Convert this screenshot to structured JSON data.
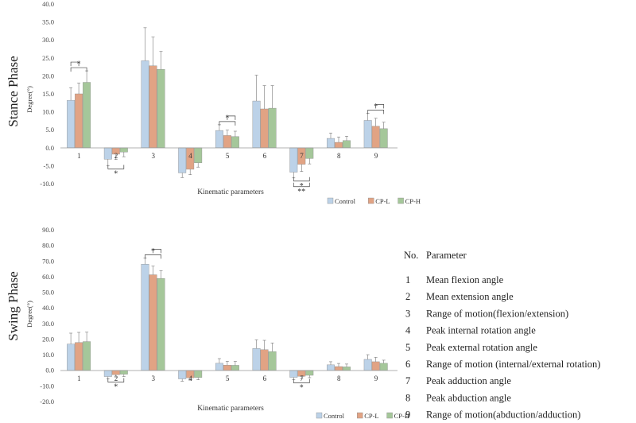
{
  "chart_data": [
    {
      "type": "bar",
      "title": "",
      "phase_label": "Stance Phase",
      "xlabel": "Kinematic parameters",
      "ylabel": "Degree(°)",
      "ylim": [
        -10,
        40
      ],
      "yticks": [
        "-10.0",
        "-5.0",
        "0.0",
        "5.0",
        "10.0",
        "15.0",
        "20.0",
        "25.0",
        "30.0",
        "35.0",
        "40.0"
      ],
      "categories": [
        "1",
        "2",
        "3",
        "4",
        "5",
        "6",
        "7",
        "8",
        "9"
      ],
      "series": [
        {
          "name": "Control",
          "color": "#bcd2e8",
          "values": [
            13.2,
            -3.2,
            24.2,
            -7.0,
            4.8,
            13.0,
            -6.8,
            2.6,
            7.6
          ],
          "errors": [
            3.5,
            1.8,
            9.2,
            1.3,
            1.6,
            7.2,
            1.6,
            1.5,
            2.0
          ]
        },
        {
          "name": "CP-L",
          "color": "#e1a384",
          "values": [
            15.0,
            -1.8,
            22.8,
            -6.0,
            3.4,
            10.8,
            -4.6,
            1.5,
            6.0
          ],
          "errors": [
            3.0,
            1.5,
            8.0,
            1.5,
            1.5,
            6.5,
            2.0,
            1.5,
            2.2
          ]
        },
        {
          "name": "CP-H",
          "color": "#a5c79a",
          "values": [
            18.2,
            -1.2,
            21.8,
            -4.2,
            3.1,
            11.0,
            -3.0,
            2.0,
            5.3
          ],
          "errors": [
            3.2,
            1.3,
            5.0,
            1.2,
            1.5,
            6.3,
            1.5,
            1.2,
            1.8
          ]
        }
      ],
      "significance": [
        "*",
        "*",
        "*",
        "*",
        "**",
        "*"
      ]
    },
    {
      "type": "bar",
      "title": "",
      "phase_label": "Swing Phase",
      "xlabel": "Kinematic parameters",
      "ylabel": "Degree(°)",
      "ylim": [
        -20,
        90
      ],
      "yticks": [
        "-20.0",
        "-10.0",
        "0.0",
        "10.0",
        "20.0",
        "30.0",
        "40.0",
        "50.0",
        "60.0",
        "70.0",
        "80.0",
        "90.0"
      ],
      "categories": [
        "1",
        "2",
        "3",
        "4",
        "5",
        "6",
        "7",
        "8",
        "9"
      ],
      "series": [
        {
          "name": "Control",
          "color": "#bcd2e8",
          "values": [
            16.8,
            -4.0,
            68.0,
            -5.5,
            4.5,
            14.0,
            -4.5,
            3.5,
            7.0
          ],
          "errors": [
            7.0,
            1.5,
            4.0,
            1.5,
            3.0,
            5.5,
            1.5,
            2.0,
            3.0
          ]
        },
        {
          "name": "CP-L",
          "color": "#e1a384",
          "values": [
            17.8,
            -2.8,
            61.2,
            -4.8,
            3.3,
            13.2,
            -3.8,
            2.4,
            5.5
          ],
          "errors": [
            6.5,
            1.5,
            5.5,
            1.5,
            2.5,
            6.0,
            1.5,
            2.0,
            2.8
          ]
        },
        {
          "name": "CP-H",
          "color": "#a5c79a",
          "values": [
            18.4,
            -2.5,
            58.8,
            -4.6,
            3.2,
            12.0,
            -3.2,
            2.2,
            4.5
          ],
          "errors": [
            6.0,
            1.5,
            5.0,
            1.5,
            2.5,
            5.5,
            1.5,
            1.8,
            2.0
          ]
        }
      ],
      "significance": [
        "*",
        "*",
        "*"
      ]
    }
  ],
  "parameter_table": {
    "header_no": "No.",
    "header_param": "Parameter",
    "rows": [
      {
        "no": "1",
        "text": "Mean flexion angle"
      },
      {
        "no": "2",
        "text": "Mean extension angle"
      },
      {
        "no": "3",
        "text": "Range of motion(flexion/extension)"
      },
      {
        "no": "4",
        "text": "Peak internal rotation angle"
      },
      {
        "no": "5",
        "text": "Peak external rotation angle"
      },
      {
        "no": "6",
        "text": "Range of motion (internal/external rotation)"
      },
      {
        "no": "7",
        "text": "Peak adduction angle"
      },
      {
        "no": "8",
        "text": "Peak abduction angle"
      },
      {
        "no": "9",
        "text": "Range of motion(abduction/adduction)"
      }
    ]
  }
}
